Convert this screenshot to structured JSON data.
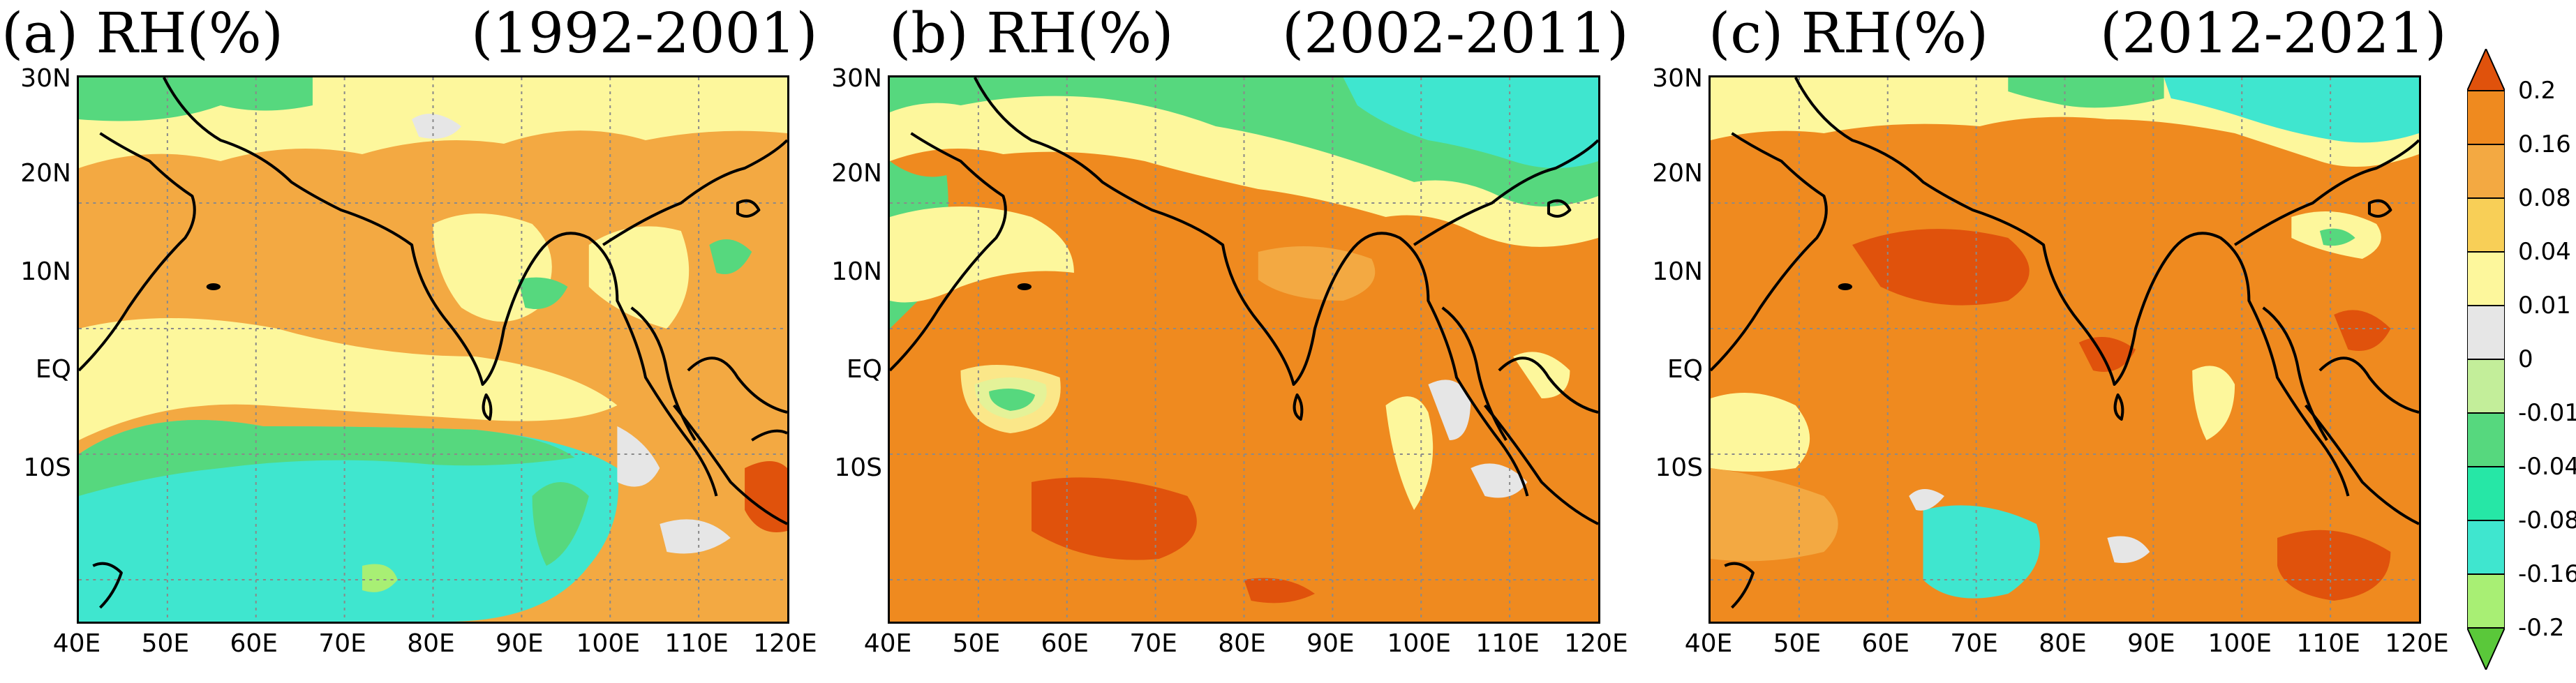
{
  "panels": [
    {
      "id": "a",
      "label": "(a) RH(%)",
      "period": "(1992-2001)",
      "dominant": "#f0a850"
    },
    {
      "id": "b",
      "label": "(b) RH(%)",
      "period": "(2002-2011)",
      "dominant": "#ee9333"
    },
    {
      "id": "c",
      "label": "(c) RH(%)",
      "period": "(2012-2021)",
      "dominant": "#ee9333"
    }
  ],
  "lat_ticks": [
    "30N",
    "20N",
    "10N",
    "EQ",
    "10S"
  ],
  "lon_ticks": [
    "40E",
    "50E",
    "60E",
    "70E",
    "80E",
    "90E",
    "100E",
    "110E",
    "120E"
  ],
  "colorbar": {
    "labels": [
      "0.2",
      "0.16",
      "0.08",
      "0.04",
      "0.01",
      "0",
      "-0.01",
      "-0.04",
      "-0.08",
      "-0.16",
      "-0.2"
    ],
    "colors": [
      "#e0520c",
      "#ef8a1f",
      "#f3a942",
      "#f8cf57",
      "#fdf79c",
      "#e6e6e6",
      "#c3ee9a",
      "#56d87e",
      "#26e7a6",
      "#3fe6cf",
      "#a8ef74",
      "#5ac83a"
    ]
  },
  "palette": {
    "coast": "#000000",
    "grid": "#8a8a8a"
  }
}
